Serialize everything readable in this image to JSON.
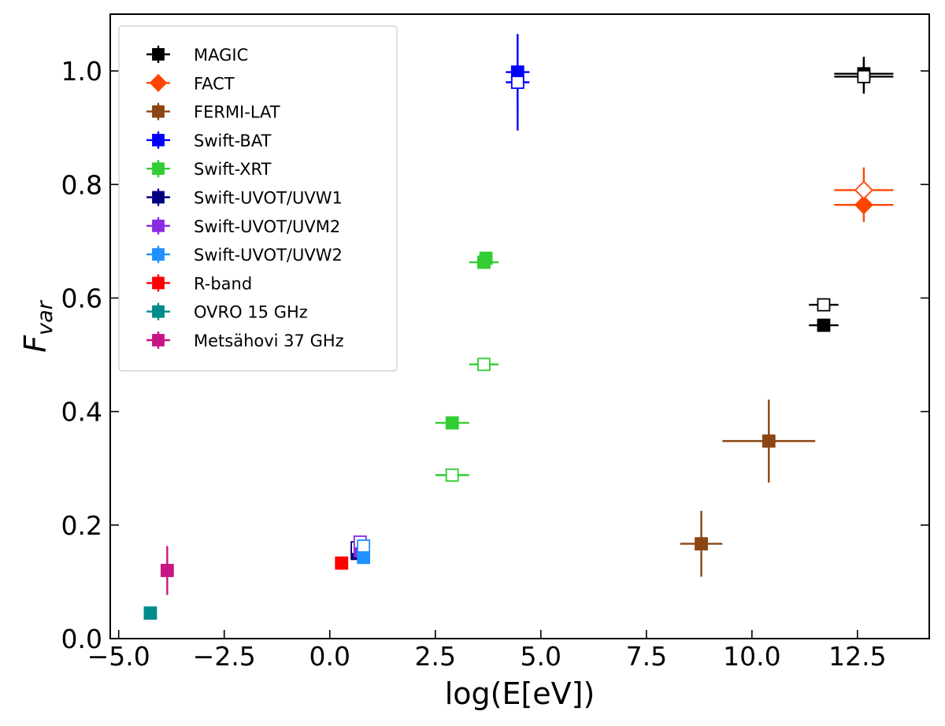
{
  "chart_data": {
    "type": "scatter",
    "xlabel": "log(E[eV])",
    "ylabel_main": "F",
    "ylabel_sub": "var",
    "xlim": [
      -5.2,
      14.2
    ],
    "ylim": [
      0.0,
      1.1
    ],
    "xticks": [
      -5.0,
      -2.5,
      0.0,
      2.5,
      5.0,
      7.5,
      10.0,
      12.5
    ],
    "xtick_labels": [
      "−5.0",
      "−2.5",
      "0.0",
      "2.5",
      "5.0",
      "7.5",
      "10.0",
      "12.5"
    ],
    "yticks": [
      0.0,
      0.2,
      0.4,
      0.6,
      0.8,
      1.0
    ],
    "ytick_labels": [
      "0.0",
      "0.2",
      "0.4",
      "0.6",
      "0.8",
      "1.0"
    ],
    "grid": false,
    "legend_position": "top-left",
    "series": [
      {
        "name": "MAGIC",
        "color": "#000000",
        "marker": "square",
        "points": [
          {
            "x": 12.65,
            "y": 0.995,
            "xerr": 0.7,
            "yerr": 0.03,
            "filled": true
          },
          {
            "x": 12.65,
            "y": 0.99,
            "xerr": 0.7,
            "yerr": 0.03,
            "filled": false
          },
          {
            "x": 11.7,
            "y": 0.552,
            "xerr": 0.35,
            "yerr": 0.008,
            "filled": true
          },
          {
            "x": 11.7,
            "y": 0.588,
            "xerr": 0.35,
            "yerr": 0.01,
            "filled": false
          }
        ]
      },
      {
        "name": "FACT",
        "color": "#ff4500",
        "marker": "diamond",
        "points": [
          {
            "x": 12.65,
            "y": 0.764,
            "xerr": 0.7,
            "yerr": 0.03,
            "filled": true
          },
          {
            "x": 12.65,
            "y": 0.79,
            "xerr": 0.7,
            "yerr": 0.04,
            "filled": false
          }
        ]
      },
      {
        "name": "FERMI-LAT",
        "color": "#8b4513",
        "marker": "square",
        "points": [
          {
            "x": 10.4,
            "y": 0.348,
            "xerr": 1.1,
            "yerr": 0.073,
            "filled": true
          },
          {
            "x": 8.8,
            "y": 0.167,
            "xerr": 0.5,
            "yerr": 0.058,
            "filled": true
          }
        ]
      },
      {
        "name": "Swift-BAT",
        "color": "#0000ff",
        "marker": "square",
        "points": [
          {
            "x": 4.45,
            "y": 0.998,
            "xerr": 0.28,
            "yerr": 0.066,
            "filled": true
          },
          {
            "x": 4.45,
            "y": 0.98,
            "xerr": 0.28,
            "yerr": 0.085,
            "filled": false
          }
        ]
      },
      {
        "name": "Swift-XRT",
        "color": "#32cd32",
        "marker": "square",
        "points": [
          {
            "x": 3.7,
            "y": 0.67,
            "xerr": 0.15,
            "yerr": 0.006,
            "filled": true
          },
          {
            "x": 3.65,
            "y": 0.663,
            "xerr": 0.35,
            "yerr": 0.005,
            "filled": true
          },
          {
            "x": 3.65,
            "y": 0.483,
            "xerr": 0.35,
            "yerr": 0.005,
            "filled": false
          },
          {
            "x": 2.9,
            "y": 0.38,
            "xerr": 0.4,
            "yerr": 0.005,
            "filled": true
          },
          {
            "x": 2.9,
            "y": 0.288,
            "xerr": 0.4,
            "yerr": 0.005,
            "filled": false
          }
        ]
      },
      {
        "name": "Swift-UVOT/UVW1",
        "color": "#000080",
        "marker": "square",
        "points": [
          {
            "x": 0.65,
            "y": 0.15,
            "xerr": 0.03,
            "yerr": 0.01,
            "filled": true
          },
          {
            "x": 0.65,
            "y": 0.16,
            "xerr": 0.03,
            "yerr": 0.01,
            "filled": false
          }
        ]
      },
      {
        "name": "Swift-UVOT/UVM2",
        "color": "#8a2be2",
        "marker": "square",
        "points": [
          {
            "x": 0.72,
            "y": 0.155,
            "xerr": 0.03,
            "yerr": 0.01,
            "filled": true
          },
          {
            "x": 0.72,
            "y": 0.17,
            "xerr": 0.03,
            "yerr": 0.01,
            "filled": false
          }
        ]
      },
      {
        "name": "Swift-UVOT/UVW2",
        "color": "#1e90ff",
        "marker": "square",
        "points": [
          {
            "x": 0.8,
            "y": 0.143,
            "xerr": 0.03,
            "yerr": 0.01,
            "filled": true
          },
          {
            "x": 0.8,
            "y": 0.163,
            "xerr": 0.03,
            "yerr": 0.01,
            "filled": false
          }
        ]
      },
      {
        "name": "R-band",
        "color": "#ff0000",
        "marker": "square",
        "points": [
          {
            "x": 0.28,
            "y": 0.133,
            "xerr": 0.0,
            "yerr": 0.0,
            "filled": true
          }
        ]
      },
      {
        "name": "OVRO 15 GHz",
        "color": "#008b8b",
        "marker": "square",
        "points": [
          {
            "x": -4.25,
            "y": 0.045,
            "xerr": 0.0,
            "yerr": 0.0,
            "filled": true
          }
        ]
      },
      {
        "name": "Metsähovi 37 GHz",
        "color": "#c71585",
        "marker": "square",
        "points": [
          {
            "x": -3.85,
            "y": 0.12,
            "xerr": 0.0,
            "yerr": 0.043,
            "filled": true
          }
        ]
      }
    ]
  }
}
